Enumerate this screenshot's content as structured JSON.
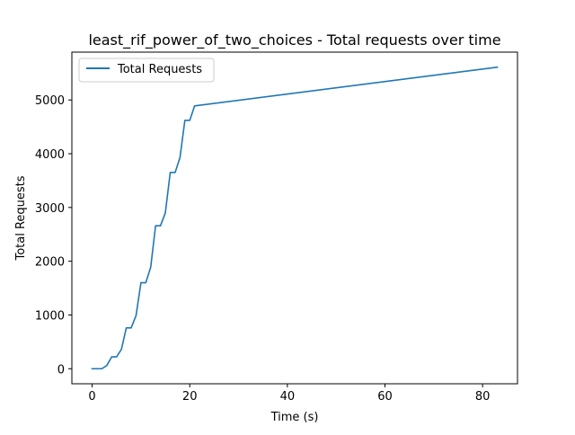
{
  "chart_data": {
    "type": "line",
    "title": "least_rif_power_of_two_choices - Total requests over time",
    "xlabel": "Time (s)",
    "ylabel": "Total Requests",
    "xlim": [
      -4.15,
      87.15
    ],
    "ylim": [
      -280,
      5890
    ],
    "xticks": [
      0,
      20,
      40,
      60,
      80
    ],
    "yticks": [
      0,
      1000,
      2000,
      3000,
      4000,
      5000
    ],
    "grid": false,
    "legend_position": "upper left",
    "series": [
      {
        "name": "Total Requests",
        "color": "#1f77b4",
        "x": [
          0,
          1,
          2,
          3,
          4,
          5,
          6,
          7,
          8,
          9,
          10,
          11,
          12,
          13,
          14,
          15,
          16,
          17,
          18,
          19,
          20,
          21,
          83
        ],
        "y": [
          0,
          0,
          0,
          60,
          220,
          220,
          360,
          760,
          760,
          990,
          1600,
          1600,
          1890,
          2660,
          2660,
          2900,
          3650,
          3650,
          3930,
          4620,
          4620,
          4890,
          5610
        ]
      }
    ]
  }
}
